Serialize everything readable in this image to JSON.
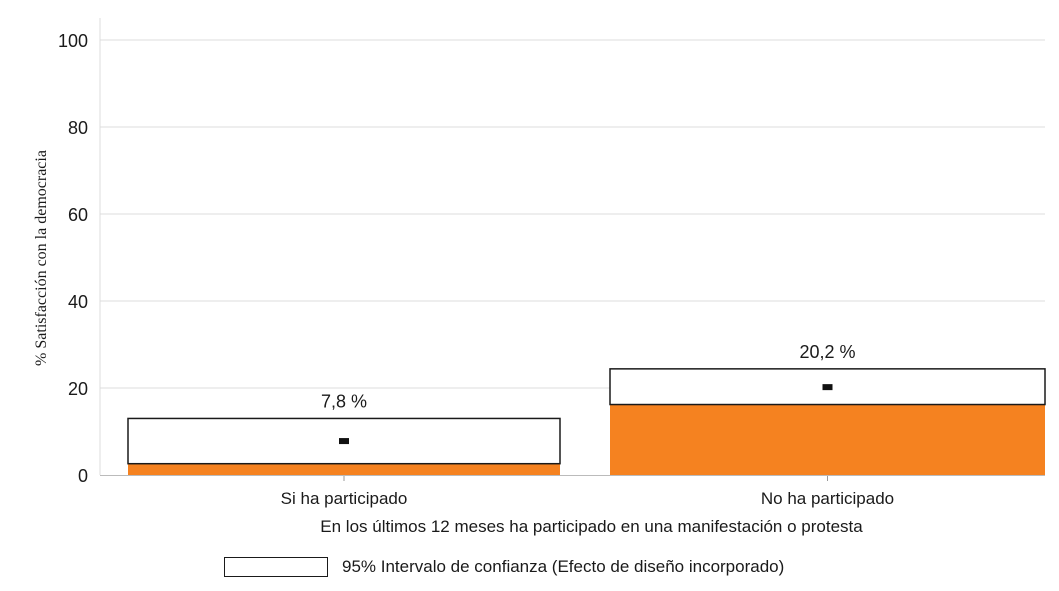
{
  "chart_data": {
    "type": "bar",
    "categories": [
      "Si ha participado",
      "No ha participado"
    ],
    "values": [
      7.8,
      20.2
    ],
    "value_labels": [
      "7,8 %",
      "20,2 %"
    ],
    "ci": [
      [
        2.6,
        13.0
      ],
      [
        16.2,
        24.4
      ]
    ],
    "ylabel": "% Satisfacción con la democracia",
    "xlabel": "En los últimos 12 meses ha participado en una manifestación o protesta",
    "ylim": [
      0,
      100
    ],
    "yticks": [
      0,
      20,
      40,
      60,
      80,
      100
    ],
    "grid": true,
    "legend": {
      "label": "95% Intervalo de confianza (Efecto de diseño incorporado)",
      "placement": "bottom"
    },
    "colors": {
      "bar": "#f58220",
      "ci_fill": "#ffffff",
      "ci_stroke": "#1a1a1a",
      "grid": "#dcdcdc"
    }
  }
}
